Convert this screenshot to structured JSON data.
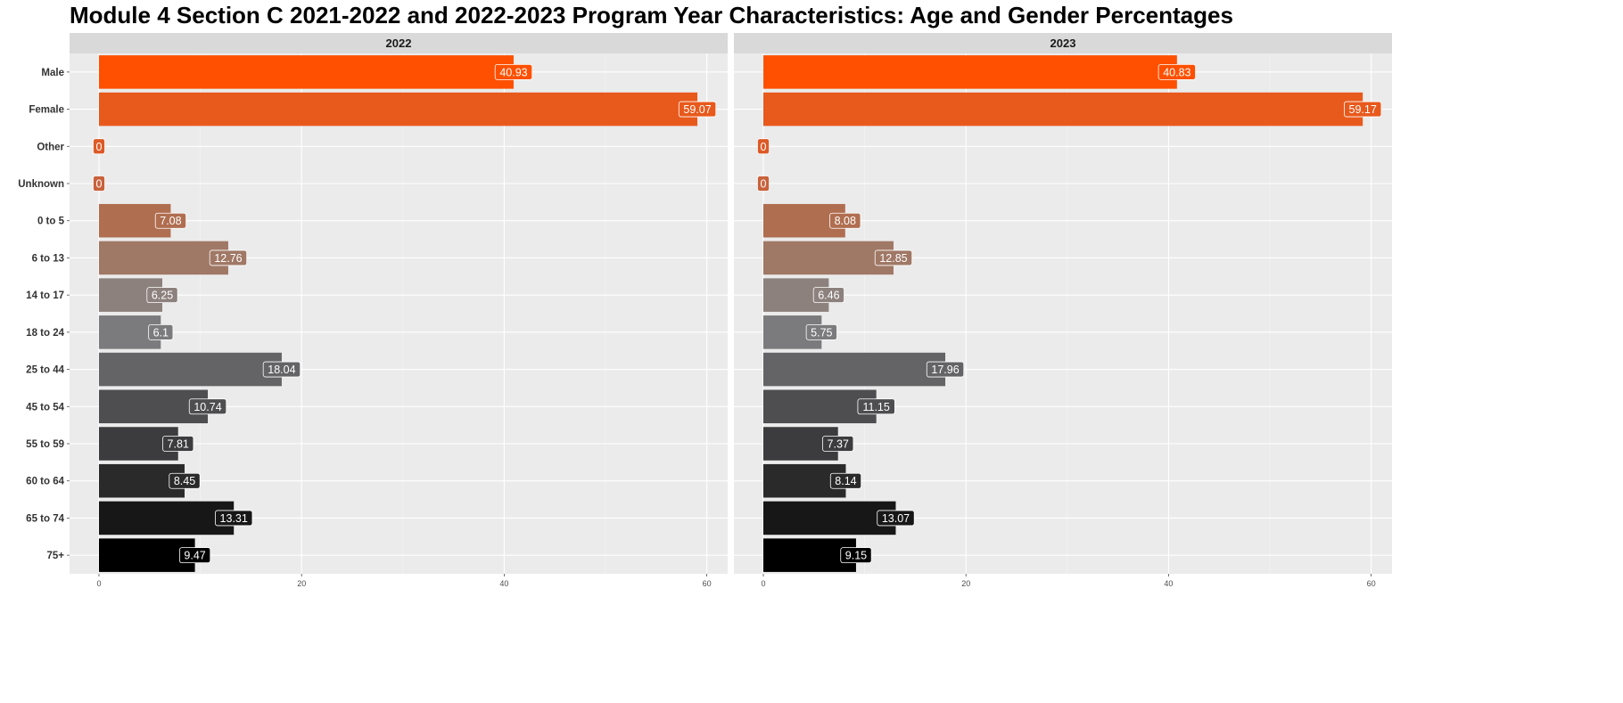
{
  "chart_data": {
    "type": "bar",
    "orientation": "horizontal",
    "title": "Module 4 Section C 2021-2022 and 2022-2023 Program Year Characteristics: Age and Gender Percentages",
    "categories": [
      "Male",
      "Female",
      "Other",
      "Unknown",
      "0 to 5",
      "6 to 13",
      "14 to 17",
      "18 to 24",
      "25 to 44",
      "45 to 54",
      "55 to 59",
      "60 to 64",
      "65 to 74",
      "75+"
    ],
    "colors": [
      "#fe5000",
      "#e8591c",
      "#dc5a27",
      "#c7623c",
      "#b06e50",
      "#a07866",
      "#8c817d",
      "#7b7b7d",
      "#646467",
      "#4e4e51",
      "#3c3c3e",
      "#2a2a2b",
      "#171717",
      "#000000"
    ],
    "xlim": [
      0,
      62
    ],
    "xticks": [
      0,
      20,
      40,
      60
    ],
    "grid": true,
    "legend": "none",
    "panels": [
      {
        "label": "2022",
        "values": [
          40.93,
          59.07,
          0,
          0,
          7.08,
          12.76,
          6.25,
          6.1,
          18.04,
          10.74,
          7.81,
          8.45,
          13.31,
          9.47
        ]
      },
      {
        "label": "2023",
        "values": [
          40.83,
          59.17,
          0,
          0,
          8.08,
          12.85,
          6.46,
          5.75,
          17.96,
          11.15,
          7.37,
          8.14,
          13.07,
          9.15
        ]
      }
    ]
  }
}
